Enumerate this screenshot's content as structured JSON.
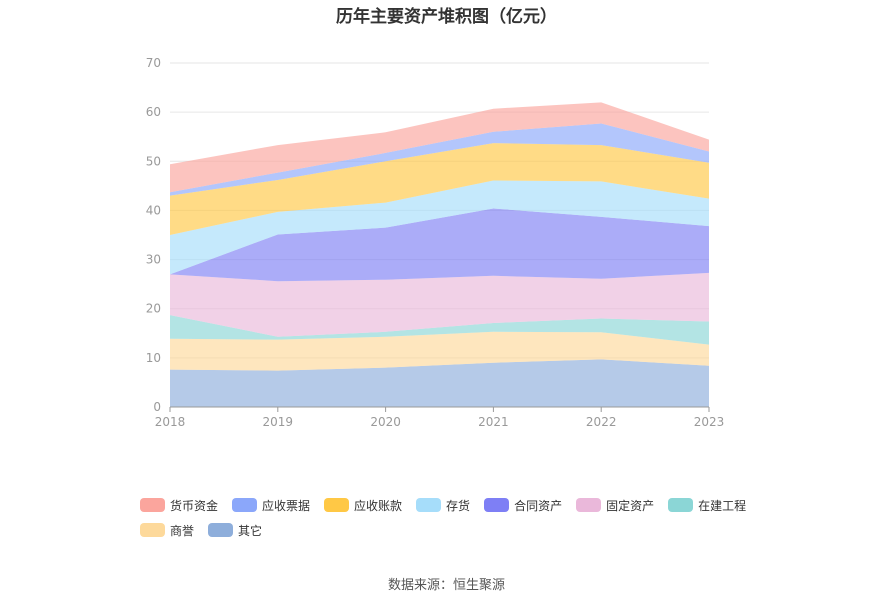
{
  "title": "历年主要资产堆积图（亿元）",
  "source": "数据来源：恒生聚源",
  "chart_data": {
    "type": "area",
    "stacked": true,
    "title": "历年主要资产堆积图（亿元）",
    "x": [
      "2018",
      "2019",
      "2020",
      "2021",
      "2022",
      "2023"
    ],
    "ylim": [
      0,
      70
    ],
    "yticks": [
      "0",
      "10",
      "20",
      "30",
      "40",
      "50",
      "60",
      "70"
    ],
    "grid": true,
    "legend_position": "bottom",
    "series": [
      {
        "name": "其它",
        "color": "#8eaedb",
        "values": [
          7.6,
          7.4,
          8.0,
          9.0,
          9.7,
          8.4
        ]
      },
      {
        "name": "商誉",
        "color": "#fdd99b",
        "values": [
          6.3,
          6.3,
          6.3,
          6.3,
          5.5,
          4.3
        ]
      },
      {
        "name": "在建工程",
        "color": "#8bd6d6",
        "values": [
          4.8,
          0.6,
          1.0,
          1.8,
          2.8,
          4.7
        ]
      },
      {
        "name": "固定资产",
        "color": "#eab8da",
        "values": [
          8.3,
          11.3,
          10.6,
          9.6,
          8.1,
          9.9
        ]
      },
      {
        "name": "合同资产",
        "color": "#7e7ff5",
        "values": [
          0.0,
          9.5,
          10.6,
          13.7,
          12.6,
          9.5
        ]
      },
      {
        "name": "存货",
        "color": "#a6ddfa",
        "values": [
          8.0,
          4.6,
          5.1,
          5.7,
          7.2,
          5.6
        ]
      },
      {
        "name": "应收账款",
        "color": "#ffc845",
        "values": [
          8.0,
          6.5,
          8.4,
          7.6,
          7.4,
          7.3
        ]
      },
      {
        "name": "应收票据",
        "color": "#8ba7fa",
        "values": [
          0.7,
          1.5,
          1.7,
          2.3,
          4.4,
          2.3
        ]
      },
      {
        "name": "货币资金",
        "color": "#fba59d",
        "values": [
          5.7,
          5.6,
          4.2,
          4.7,
          4.3,
          2.4
        ]
      }
    ]
  },
  "legend": {
    "row1": [
      {
        "label": "货币资金",
        "color": "#fba59d"
      },
      {
        "label": "应收票据",
        "color": "#8ba7fa"
      },
      {
        "label": "应收账款",
        "color": "#ffc845"
      },
      {
        "label": "存货",
        "color": "#a6ddfa"
      },
      {
        "label": "合同资产",
        "color": "#7e7ff5"
      },
      {
        "label": "固定资产",
        "color": "#eab8da"
      },
      {
        "label": "在建工程",
        "color": "#8bd6d6"
      }
    ],
    "row2": [
      {
        "label": "商誉",
        "color": "#fdd99b"
      },
      {
        "label": "其它",
        "color": "#8eaedb"
      }
    ]
  }
}
